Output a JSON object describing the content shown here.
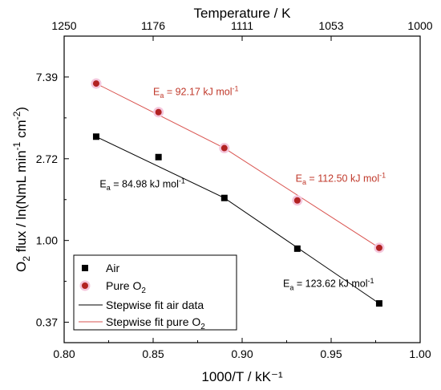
{
  "chart_data": {
    "type": "scatter",
    "xlabel": "1000/T / kK⁻¹",
    "ylabel_parts": {
      "pre": "O",
      "sub": "2",
      "mid": " flux / ln(NmL min",
      "sup1": "-1",
      "mid2": " cm",
      "sup2": "-2",
      "post": ")"
    },
    "top_axis_label": "Temperature / K",
    "xlim": [
      0.8,
      1.0
    ],
    "ylim": [
      -1.25,
      2.5
    ],
    "x_ticks": [
      0.8,
      0.85,
      0.9,
      0.95,
      1.0
    ],
    "x_tick_labels": [
      "0.80",
      "0.85",
      "0.90",
      "0.95",
      "1.00"
    ],
    "y_ticks": [
      -1,
      0,
      1,
      2
    ],
    "y_tick_labels": [
      "0.37",
      "1.00",
      "2.72",
      "7.39"
    ],
    "top_ticks": [
      0.8,
      0.85,
      0.9,
      0.95,
      1.0
    ],
    "top_tick_labels": [
      "1250",
      "1176",
      "1111",
      "1053",
      "1000"
    ],
    "grid": false,
    "legend_position": "bottom-left",
    "series": [
      {
        "name": "Air",
        "marker": "square",
        "color": "#000000",
        "x": [
          0.818,
          0.853,
          0.89,
          0.931,
          0.977
        ],
        "y": [
          1.27,
          1.02,
          0.52,
          -0.1,
          -0.77
        ]
      },
      {
        "name": "Pure O",
        "name_sub": "2",
        "marker": "circle",
        "color": "#b22222",
        "halo": "#f4c6dc",
        "x": [
          0.818,
          0.853,
          0.89,
          0.931,
          0.977
        ],
        "y": [
          1.92,
          1.57,
          1.13,
          0.49,
          -0.09
        ]
      }
    ],
    "fits": [
      {
        "name": "Stepwise fit air data",
        "color": "#000000",
        "x": [
          0.818,
          0.89,
          0.977
        ],
        "y": [
          1.27,
          0.52,
          -0.77
        ]
      },
      {
        "name": "Stepwise fit pure O",
        "name_sub": "2",
        "color": "#d9534f",
        "x": [
          0.818,
          0.89,
          0.977
        ],
        "y": [
          1.92,
          1.13,
          -0.09
        ]
      }
    ],
    "annotations": [
      {
        "pre": "E",
        "sub": "a",
        "text": " = 92.17 kJ mol",
        "sup": "-1",
        "color": "#c0392b",
        "x": 0.85,
        "y": 1.78
      },
      {
        "pre": "E",
        "sub": "a",
        "text": " = 84.98 kJ mol",
        "sup": "-1",
        "color": "#000000",
        "x": 0.82,
        "y": 0.65
      },
      {
        "pre": "E",
        "sub": "a",
        "text": " = 112.50 kJ mol",
        "sup": "-1",
        "color": "#c0392b",
        "x": 0.93,
        "y": 0.72
      },
      {
        "pre": "E",
        "sub": "a",
        "text": " = 123.62 kJ mol",
        "sup": "-1",
        "color": "#000000",
        "x": 0.923,
        "y": -0.57
      }
    ]
  }
}
